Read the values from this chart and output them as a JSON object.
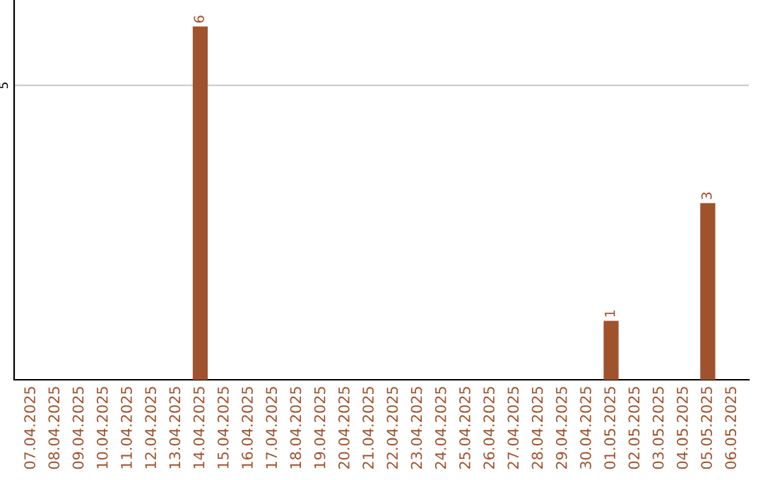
{
  "chart_data": {
    "type": "bar",
    "categories": [
      "07.04.2025",
      "08.04.2025",
      "09.04.2025",
      "10.04.2025",
      "11.04.2025",
      "12.04.2025",
      "13.04.2025",
      "14.04.2025",
      "15.04.2025",
      "16.04.2025",
      "17.04.2025",
      "18.04.2025",
      "19.04.2025",
      "20.04.2025",
      "21.04.2025",
      "22.04.2025",
      "23.04.2025",
      "24.04.2025",
      "25.04.2025",
      "26.04.2025",
      "27.04.2025",
      "28.04.2025",
      "29.04.2025",
      "30.04.2025",
      "01.05.2025",
      "02.05.2025",
      "03.05.2025",
      "04.05.2025",
      "05.05.2025",
      "06.05.2025"
    ],
    "values": [
      0,
      0,
      0,
      0,
      0,
      0,
      0,
      6,
      0,
      0,
      0,
      0,
      0,
      0,
      0,
      0,
      0,
      0,
      0,
      0,
      0,
      0,
      0,
      0,
      1,
      0,
      0,
      0,
      3,
      0
    ],
    "value_labels": [
      null,
      null,
      null,
      null,
      null,
      null,
      null,
      "6",
      null,
      null,
      null,
      null,
      null,
      null,
      null,
      null,
      null,
      null,
      null,
      null,
      null,
      null,
      null,
      null,
      "1",
      null,
      null,
      null,
      "3",
      null
    ],
    "color": "#a0522d",
    "ylim": [
      0,
      6.45
    ],
    "yticks": [
      5
    ],
    "grid": "y"
  }
}
